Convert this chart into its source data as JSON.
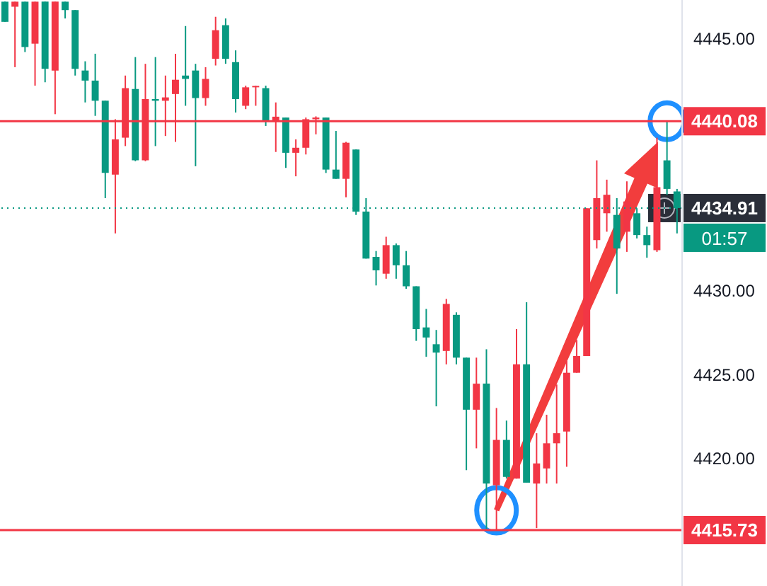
{
  "chart_data": {
    "type": "candlestick",
    "categories": [
      null,
      null,
      null,
      null,
      null,
      null,
      null,
      null,
      null,
      null,
      null,
      null,
      null,
      null,
      null,
      null,
      null,
      null,
      null,
      null,
      null,
      null,
      null,
      null,
      null,
      null,
      null,
      null,
      null,
      null,
      null,
      null,
      null,
      null,
      null,
      null,
      null,
      null,
      null,
      null,
      null,
      null,
      null,
      null,
      null,
      null,
      null,
      null,
      null,
      null,
      null,
      null,
      null,
      null,
      null,
      null,
      null,
      null,
      null,
      null,
      null,
      null,
      null,
      null,
      null,
      null,
      null,
      null
    ],
    "ohlc": [
      [
        4447.2,
        4447.2,
        4446.0,
        4446.0
      ],
      [
        4446.9,
        4447.2,
        4443.3,
        4447.2
      ],
      [
        4447.2,
        4447.2,
        4444.2,
        4444.5
      ],
      [
        4444.7,
        4447.2,
        4442.2,
        4447.2
      ],
      [
        4447.2,
        4447.2,
        4442.4,
        4443.2
      ],
      [
        4443.1,
        4447.2,
        4440.5,
        4447.2
      ],
      [
        4447.2,
        4447.2,
        4446.2,
        4446.7
      ],
      [
        4446.7,
        4446.7,
        4442.8,
        4443.2
      ],
      [
        4443.1,
        4443.65,
        4441.2,
        4442.5
      ],
      [
        4442.5,
        4444.1,
        4440.4,
        4441.3
      ],
      [
        4441.3,
        4441.3,
        4435.5,
        4437.0
      ],
      [
        4436.9,
        4440.2,
        4433.4,
        4439.0
      ],
      [
        4439.1,
        4442.8,
        4438.6,
        4442.05
      ],
      [
        4442.0,
        4443.9,
        4437.7,
        4437.75
      ],
      [
        4437.75,
        4443.5,
        4437.7,
        4441.4
      ],
      [
        4441.4,
        4443.9,
        4438.6,
        4441.3
      ],
      [
        4441.3,
        4442.8,
        4439.2,
        4441.5
      ],
      [
        4441.7,
        4444.1,
        4438.85,
        4442.55
      ],
      [
        4442.8,
        4445.75,
        4441.0,
        4442.6
      ],
      [
        4443.1,
        4443.5,
        4437.4,
        4441.46
      ],
      [
        4441.46,
        4443.3,
        4441.0,
        4442.6
      ],
      [
        4443.8,
        4446.3,
        4443.4,
        4445.5
      ],
      [
        4445.8,
        4446.2,
        4443.5,
        4443.8
      ],
      [
        4443.6,
        4444.3,
        4440.6,
        4441.4
      ],
      [
        4441.0,
        4442.2,
        4440.8,
        4442.1
      ],
      [
        4442.1,
        4442.2,
        4441.0,
        4442.15
      ],
      [
        4442.05,
        4442.2,
        4439.8,
        4440.1
      ],
      [
        4440.1,
        4441.2,
        4438.25,
        4440.35
      ],
      [
        4440.3,
        4440.3,
        4437.3,
        4438.2
      ],
      [
        4438.2,
        4439.0,
        4436.8,
        4438.5
      ],
      [
        4438.5,
        4440.3,
        4438.1,
        4440.2
      ],
      [
        4440.2,
        4440.37,
        4439.3,
        4440.3
      ],
      [
        4440.3,
        4440.3,
        4437.0,
        4437.2
      ],
      [
        4437.2,
        4439.5,
        4436.65,
        4436.65
      ],
      [
        4436.65,
        4438.85,
        4435.55,
        4438.8
      ],
      [
        4438.4,
        4438.4,
        4434.5,
        4434.7
      ],
      [
        4434.7,
        4435.5,
        4431.9,
        4431.9
      ],
      [
        4432.0,
        4432.35,
        4430.3,
        4431.2
      ],
      [
        4431.0,
        4433.2,
        4430.7,
        4432.7
      ],
      [
        4432.7,
        4432.8,
        4430.7,
        4431.5
      ],
      [
        4431.5,
        4432.35,
        4430.1,
        4430.25
      ],
      [
        4430.25,
        4430.25,
        4427.0,
        4427.7
      ],
      [
        4427.8,
        4428.9,
        4426.05,
        4427.2
      ],
      [
        4426.8,
        4427.65,
        4423.1,
        4426.3
      ],
      [
        4426.4,
        4429.5,
        4425.6,
        4429.2
      ],
      [
        4428.55,
        4428.7,
        4425.6,
        4426.0
      ],
      [
        4426.0,
        4426.0,
        4419.3,
        4422.9
      ],
      [
        4422.9,
        4426.0,
        4420.6,
        4424.45
      ],
      [
        4424.45,
        4426.5,
        4415.8,
        4418.5
      ],
      [
        4418.4,
        4423.0,
        4415.73,
        4421.1
      ],
      [
        4421.1,
        4422.25,
        4418.8,
        4418.9
      ],
      [
        4418.8,
        4427.7,
        4418.8,
        4425.6
      ],
      [
        4425.6,
        4429.3,
        4418.55,
        4418.55
      ],
      [
        4418.5,
        4421.5,
        4415.85,
        4419.7
      ],
      [
        4419.4,
        4422.6,
        4418.5,
        4420.9
      ],
      [
        4420.9,
        4424.4,
        4418.5,
        4421.5
      ],
      [
        4421.6,
        4425.8,
        4419.5,
        4425.1
      ],
      [
        4425.1,
        4427.05,
        4425.1,
        4426.1
      ],
      [
        4426.1,
        4434.9,
        4426.1,
        4434.9
      ],
      [
        4433.0,
        4437.75,
        4432.5,
        4435.5
      ],
      [
        4434.6,
        4436.6,
        4433.5,
        4435.7
      ],
      [
        4434.5,
        4435.5,
        4429.8,
        4432.5
      ],
      [
        4433.5,
        4436.5,
        4432.3,
        4435.3
      ],
      [
        4434.6,
        4434.9,
        4433.1,
        4433.3
      ],
      [
        4433.3,
        4433.8,
        4431.95,
        4432.7
      ],
      [
        4432.4,
        4439.1,
        4432.3,
        4436.15
      ],
      [
        4437.75,
        4440.08,
        4435.7,
        4436.05
      ],
      [
        4435.9,
        4436.05,
        4433.4,
        4434.91
      ]
    ],
    "colors": [
      "#089981",
      "#f23645",
      "#089981",
      "#f23645",
      "#089981",
      "#f23645",
      "#089981",
      "#089981",
      "#089981",
      "#089981",
      "#089981",
      "#f23645",
      "#f23645",
      "#089981",
      "#f23645",
      "#089981",
      "#f23645",
      "#f23645",
      "#089981",
      "#089981",
      "#f23645",
      "#f23645",
      "#089981",
      "#089981",
      "#f23645",
      "#f23645",
      "#089981",
      "#f23645",
      "#089981",
      "#f23645",
      "#f23645",
      "#f23645",
      "#089981",
      "#089981",
      "#f23645",
      "#089981",
      "#089981",
      "#089981",
      "#f23645",
      "#089981",
      "#089981",
      "#089981",
      "#089981",
      "#089981",
      "#f23645",
      "#089981",
      "#089981",
      "#f23645",
      "#089981",
      "#f23645",
      "#089981",
      "#f23645",
      "#089981",
      "#f23645",
      "#f23645",
      "#f23645",
      "#f23645",
      "#f23645",
      "#f23645",
      "#f23645",
      "#f23645",
      "#089981",
      "#f23645",
      "#089981",
      "#089981",
      "#f23645",
      "#089981",
      "#089981"
    ],
    "ylim": [
      4412.4,
      4447.3
    ],
    "yticks": [
      {
        "value": 4445,
        "label": "4445.00"
      },
      {
        "value": 4430,
        "label": "4430.00"
      },
      {
        "value": 4425,
        "label": "4425.00"
      },
      {
        "value": 4420,
        "label": "4420.00"
      }
    ],
    "ref_lines": [
      {
        "axis": "y",
        "value": 4440.08,
        "label": "4440.08",
        "color": "#f23645",
        "line_style": "solid"
      },
      {
        "axis": "y",
        "value": 4415.73,
        "label": "4415.73",
        "color": "#f23645",
        "line_style": "solid"
      },
      {
        "axis": "y",
        "value": 4434.91,
        "label": "4434.91",
        "color": "#089981",
        "line_style": "dotted"
      }
    ],
    "annotations": [
      "01:57"
    ],
    "tick_labels": "y"
  }
}
